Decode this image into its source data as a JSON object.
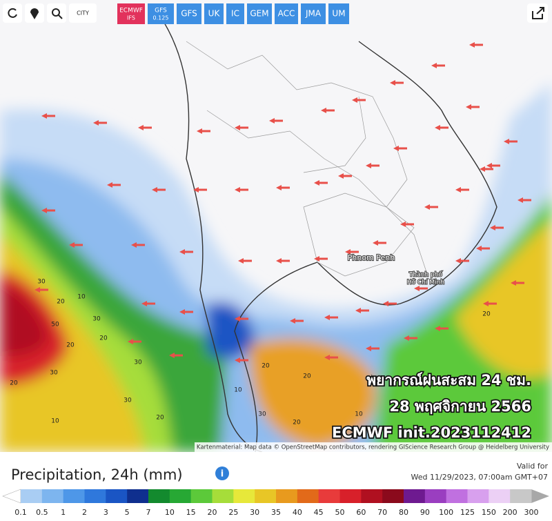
{
  "toolbar": {
    "city_button": "CITY",
    "models": [
      {
        "label": "ECMWF",
        "sublabel": "IFS",
        "active": true
      },
      {
        "label": "GFS",
        "sublabel": "0.125"
      },
      {
        "label": "GFS"
      },
      {
        "label": "UK"
      },
      {
        "label": "IC"
      },
      {
        "label": "GEM"
      },
      {
        "label": "ACC"
      },
      {
        "label": "JMA"
      },
      {
        "label": "UM"
      }
    ]
  },
  "map": {
    "place_labels": [
      "Phnom Penh",
      [
        "Thành phố",
        "Hồ Chí Minh"
      ]
    ],
    "contour_labels": [
      "20",
      "30",
      "50",
      "30",
      "10",
      "20",
      "30",
      "20",
      "10",
      "30",
      "20",
      "30",
      "20",
      "10",
      "20",
      "30",
      "20",
      "20",
      "10",
      "20"
    ],
    "overlay_lines": [
      "พยากรณ์ฝนสะสม 24 ชม.",
      "28 พฤศจิกายน 2566",
      "ECMWF init.2023112412"
    ],
    "attribution": "Kartenmaterial: Map data © OpenStreetMap contributors, rendering GIScience Research Group @ Heidelberg University"
  },
  "legend": {
    "title": "Precipitation, 24h (mm)",
    "valid_label": "Valid for",
    "valid_time": "Wed 11/29/2023, 07:00am GMT+07",
    "scale": {
      "labels": [
        "0.1",
        "0.5",
        "1",
        "2",
        "3",
        "5",
        "7",
        "10",
        "15",
        "20",
        "25",
        "30",
        "35",
        "40",
        "45",
        "50",
        "60",
        "70",
        "80",
        "90",
        "100",
        "125",
        "150",
        "200",
        "300"
      ],
      "under_color": "#ffffff",
      "over_color": "#a8a8a8",
      "colors": [
        "#a9cdf3",
        "#7db5ef",
        "#4e97e8",
        "#2f78dc",
        "#1a55c4",
        "#0f2f8e",
        "#138a2e",
        "#27a834",
        "#5cc93a",
        "#a6dd3a",
        "#e7e83a",
        "#e8c626",
        "#e89a1e",
        "#e26a1a",
        "#e83b3b",
        "#d8202a",
        "#b01020",
        "#8b0a1c",
        "#6e1a90",
        "#9a3ec0",
        "#c070e0",
        "#d8a0ee",
        "#ecd0f5",
        "#c8c8c8"
      ]
    }
  }
}
